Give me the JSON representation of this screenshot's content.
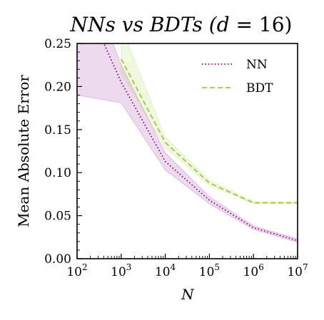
{
  "chart_data": {
    "type": "line",
    "title": "NNs vs BDTs (d = 16)",
    "title_parts": {
      "main": "NNs vs BDTs (",
      "var": "d",
      "rest": " = 16)"
    },
    "xlabel": "N",
    "ylabel": "Mean Absolute Error",
    "xscale": "log",
    "xlim": [
      100,
      10000000
    ],
    "ylim": [
      0.0,
      0.25
    ],
    "x_ticks": [
      {
        "base": "10",
        "exp": "2",
        "value": 100
      },
      {
        "base": "10",
        "exp": "3",
        "value": 1000
      },
      {
        "base": "10",
        "exp": "4",
        "value": 10000
      },
      {
        "base": "10",
        "exp": "5",
        "value": 100000
      },
      {
        "base": "10",
        "exp": "6",
        "value": 1000000
      },
      {
        "base": "10",
        "exp": "7",
        "value": 10000000
      }
    ],
    "y_ticks": [
      "0.00",
      "0.05",
      "0.10",
      "0.15",
      "0.20",
      "0.25"
    ],
    "y_tick_values": [
      0.0,
      0.05,
      0.1,
      0.15,
      0.2,
      0.25
    ],
    "legend_position": "top-right",
    "grid": false,
    "series": [
      {
        "name": "NN",
        "style": "dotted",
        "color": "#800080",
        "x": [
          100,
          1000,
          10000,
          100000,
          1000000,
          10000000
        ],
        "y": [
          0.32,
          0.205,
          0.113,
          0.068,
          0.036,
          0.021
        ],
        "band_upper": [
          0.36,
          0.225,
          0.123,
          0.072,
          0.038,
          0.023
        ],
        "band_lower": [
          0.19,
          0.181,
          0.103,
          0.064,
          0.034,
          0.019
        ]
      },
      {
        "name": "BDT",
        "style": "dashed",
        "color": "#9acd32",
        "x": [
          1000,
          10000,
          100000,
          1000000,
          10000000
        ],
        "y": [
          0.232,
          0.135,
          0.088,
          0.065,
          0.065
        ],
        "band_upper": [
          0.27,
          0.141,
          0.091,
          0.066,
          0.066
        ],
        "band_lower": [
          0.216,
          0.129,
          0.085,
          0.064,
          0.064
        ]
      }
    ]
  }
}
